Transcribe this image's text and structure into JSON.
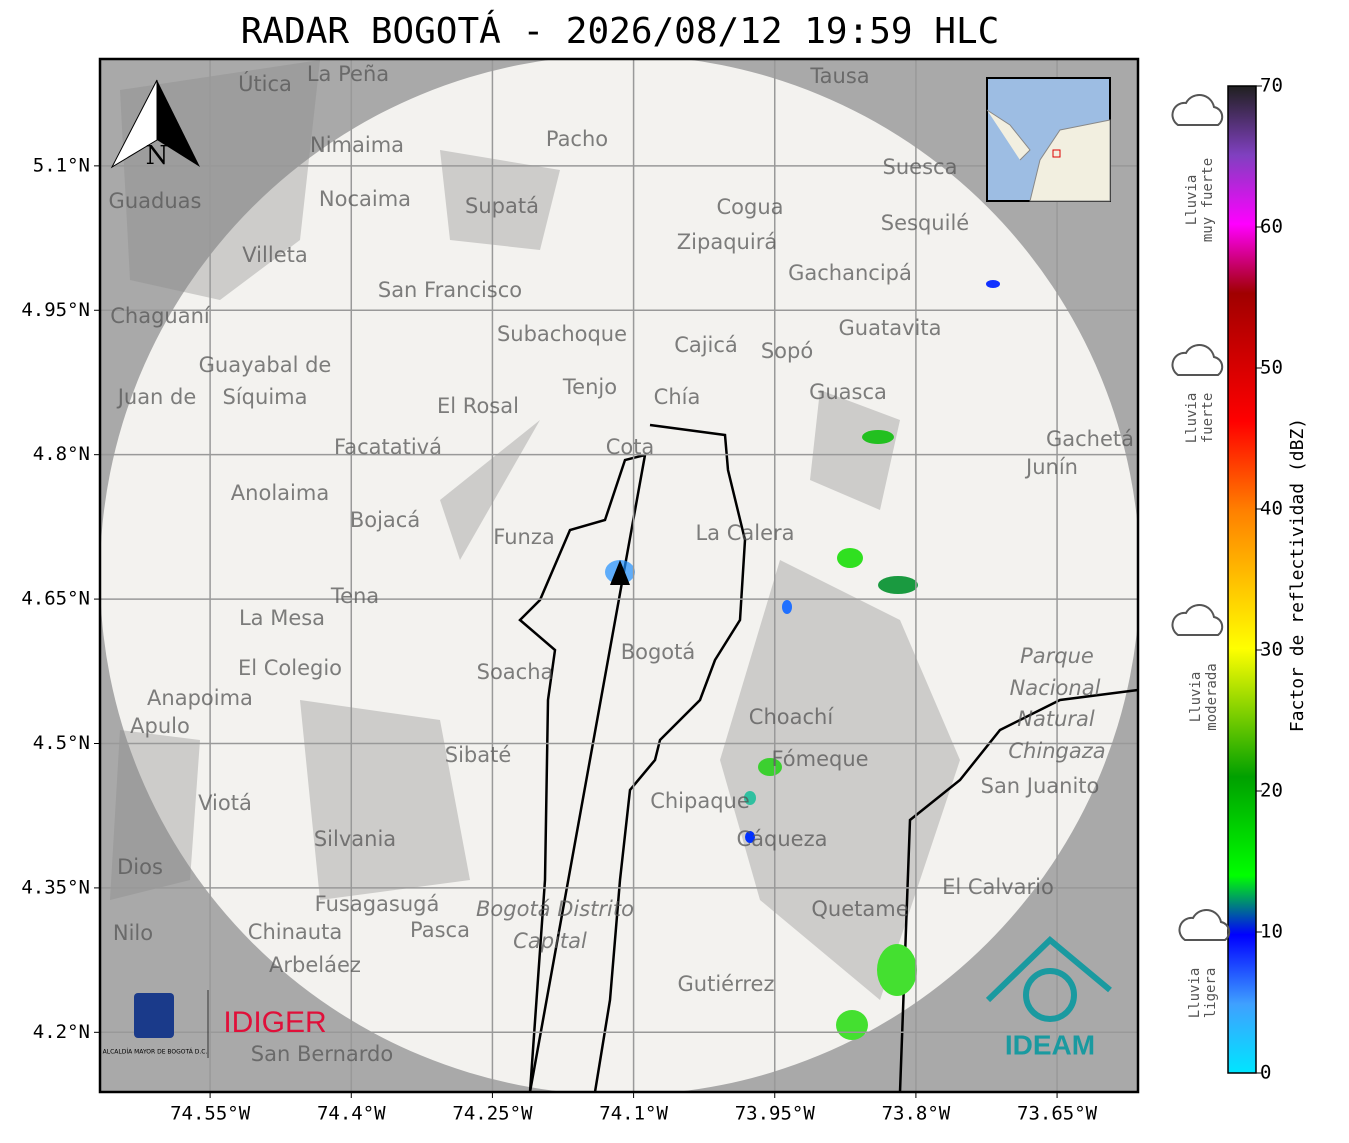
{
  "header": {
    "title": "RADAR BOGOTÁ - 2026/08/12 19:59 HLC"
  },
  "map": {
    "xlim": [
      -74.667,
      -73.564
    ],
    "ylim": [
      4.138,
      5.211
    ],
    "xticks": [
      {
        "value": -74.55,
        "label": "74.55°W"
      },
      {
        "value": -74.4,
        "label": "74.4°W"
      },
      {
        "value": -74.25,
        "label": "74.25°W"
      },
      {
        "value": -74.1,
        "label": "74.1°W"
      },
      {
        "value": -73.95,
        "label": "73.95°W"
      },
      {
        "value": -73.8,
        "label": "73.8°W"
      },
      {
        "value": -73.65,
        "label": "73.65°W"
      }
    ],
    "yticks": [
      {
        "value": 5.1,
        "label": "5.1°N"
      },
      {
        "value": 4.95,
        "label": "4.95°N"
      },
      {
        "value": 4.8,
        "label": "4.8°N"
      },
      {
        "value": 4.65,
        "label": "4.65°N"
      },
      {
        "value": 4.5,
        "label": "4.5°N"
      },
      {
        "value": 4.35,
        "label": "4.35°N"
      },
      {
        "value": 4.2,
        "label": "4.2°N"
      }
    ],
    "grid": true,
    "north": "N",
    "places": [
      "La Peña",
      "Útica",
      "Tausa",
      "Pacho",
      "Nimaima",
      "Guaduas",
      "Nocaima",
      "Supatá",
      "Cogua",
      "Suesca",
      "Sesquilé",
      "Zipaquirá",
      "Villeta",
      "Gachancipá",
      "San Francisco",
      "Chaguaní",
      "Guatavita",
      "Subachoque",
      "Cajicá",
      "Sopó",
      "Guayabal de",
      "Síquima",
      "Tenjo",
      "Chía",
      "Guasca",
      "El Rosal",
      "Juan de",
      "Facatativá",
      "Cota",
      "Gachetá",
      "Junín",
      "Anolaima",
      "Bojacá",
      "Funza",
      "La Calera",
      "Tena",
      "La Mesa",
      "Bogotá",
      "Soacha",
      "Parque",
      "Nacional",
      "Natural",
      "Chingaza",
      "El Colegio",
      "Anapoima",
      "Apulo",
      "Choachí",
      "Sibaté",
      "Fómeque",
      "San Juanito",
      "Chipaque",
      "Viotá",
      "Cáqueza",
      "Silvania",
      "El Calvario",
      "Fusagasugá",
      "Bogotá Distrito",
      "Capital",
      "Quetame",
      "Chinauta",
      "Pasca",
      "Nilo",
      "Arbeláez",
      "Gutiérrez",
      "Dios",
      "San Bernardo"
    ],
    "logos": {
      "alcaldia": "ALCALDÍA MAYOR DE BOGOTÁ D.C.",
      "idiger": "IDIGER",
      "ideam": "IDEAM"
    }
  },
  "colorbar": {
    "label": "Factor de reflectividad (dBZ)",
    "lim": [
      0,
      70
    ],
    "ticks": [
      0,
      10,
      20,
      30,
      40,
      50,
      60,
      70
    ],
    "rain": [
      [
        "Lluvia",
        "muy fuerte"
      ],
      [
        "Lluvia",
        "fuerte"
      ],
      [
        "Lluvia",
        "moderada"
      ],
      [
        "Lluvia",
        "ligera"
      ]
    ]
  }
}
